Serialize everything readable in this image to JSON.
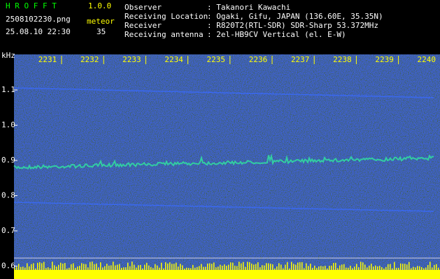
{
  "header": {
    "title": "H R O F F T",
    "version": "1.0.0",
    "filename": "2508102230.png",
    "datetime": "25.08.10 22:30",
    "count_label": "meteor",
    "count": 35,
    "fields": [
      {
        "label": "Observer",
        "value": ": Takanori Kawachi"
      },
      {
        "label": "Receiving Location",
        "value": ": Ogaki, Gifu, JAPAN (136.60E, 35.35N)"
      },
      {
        "label": "Receiver",
        "value": ": R820T2(RTL-SDR) SDR-Sharp 53.372MHz"
      },
      {
        "label": "Receiving antenna",
        "value": ": 2el-HB9CV Vertical (el. E-W)"
      }
    ]
  },
  "axes": {
    "y_unit": "kHz",
    "x_ticks": [
      "2231",
      "2232",
      "2233",
      "2234",
      "2235",
      "2236",
      "2237",
      "2238",
      "2239",
      "2240"
    ],
    "y_ticks": [
      "1.1",
      "1.0",
      "0.9",
      "0.8",
      "0.7",
      "0.6"
    ]
  }
}
